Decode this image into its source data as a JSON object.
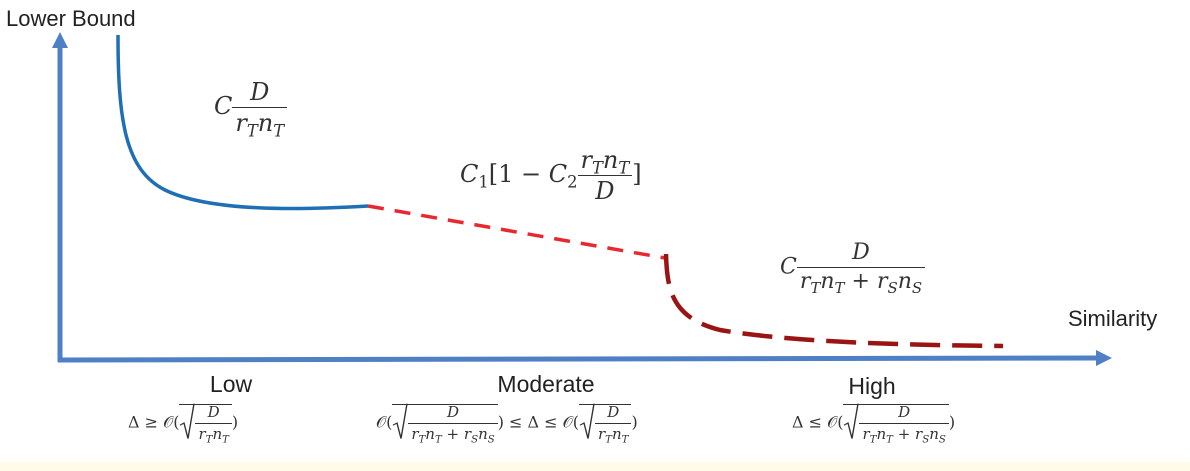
{
  "axes": {
    "y_label": "Lower Bound",
    "x_label": "Similarity",
    "color": "#4f7fc4"
  },
  "regions": [
    {
      "label": "Low"
    },
    {
      "label": "Moderate"
    },
    {
      "label": "High"
    }
  ],
  "curves": [
    {
      "region": "Low",
      "style": "solid",
      "color": "#1f6fb5"
    },
    {
      "region": "Moderate",
      "style": "dashed",
      "color": "#e8272f"
    },
    {
      "region": "High",
      "style": "long-dashed",
      "color": "#9b1414"
    }
  ],
  "formulas": {
    "low": {
      "coef": "C",
      "num": "D",
      "den": "rTnT"
    },
    "moderate": {
      "coef": "C1[1 − C2",
      "num": "rTnT",
      "den": "D",
      "close": "]"
    },
    "high": {
      "coef": "C",
      "num": "D",
      "den": "rTnT + rSnS"
    }
  },
  "conditions": {
    "low": "Δ ≥ 𝒪(√(D / rTnT))",
    "moderate": "𝒪(√(D / (rTnT + rSnS))) ≤ Δ ≤ 𝒪(√(D / rTnT))",
    "high": "Δ ≤ 𝒪(√(D / (rTnT + rSnS)))"
  }
}
